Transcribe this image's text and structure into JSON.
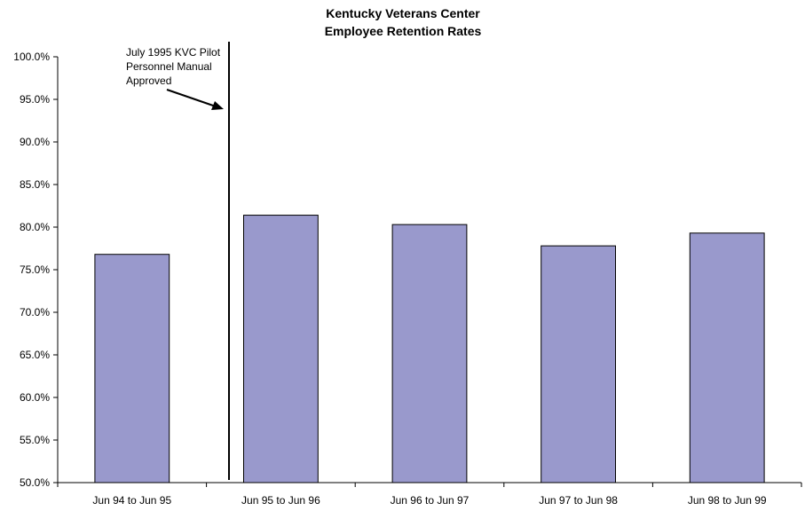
{
  "chart_data": {
    "type": "bar",
    "title": "Kentucky Veterans Center",
    "subtitle": "Employee Retention Rates",
    "xlabel": "",
    "ylabel": "",
    "categories": [
      "Jun 94 to Jun 95",
      "Jun 95 to Jun 96",
      "Jun 96 to Jun 97",
      "Jun 97 to Jun 98",
      "Jun 98 to Jun 99"
    ],
    "values": [
      76.8,
      81.4,
      80.3,
      77.8,
      79.3
    ],
    "ylim": [
      50,
      100
    ],
    "y_ticks": [
      "50.0%",
      "55.0%",
      "60.0%",
      "65.0%",
      "70.0%",
      "75.0%",
      "80.0%",
      "85.0%",
      "90.0%",
      "95.0%",
      "100.0%"
    ],
    "grid": false,
    "legend": "none",
    "bar_color": "#9999cc",
    "annotation": {
      "lines": [
        "July 1995 KVC Pilot",
        "Personnel Manual",
        "Approved"
      ]
    }
  }
}
